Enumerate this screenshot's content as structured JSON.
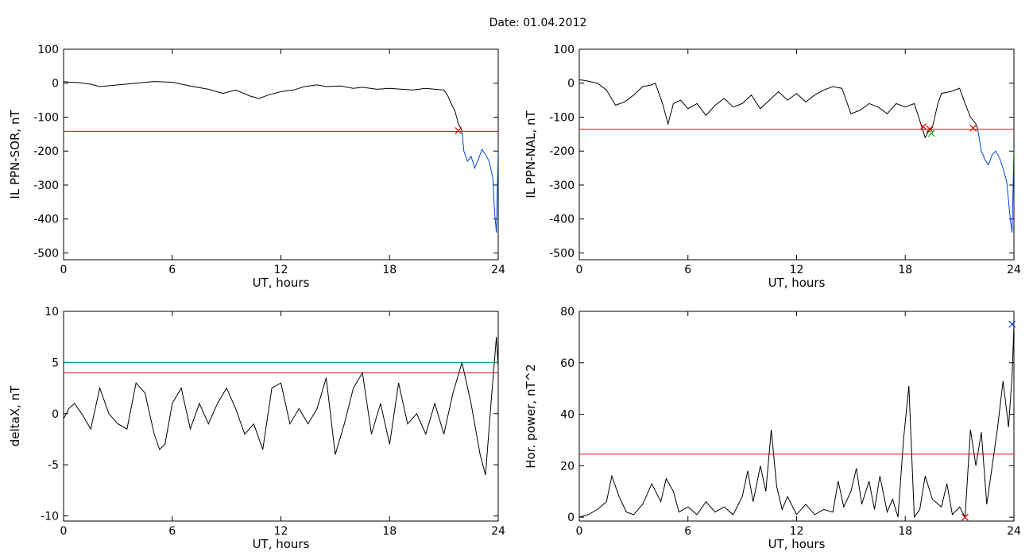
{
  "figure_title": "Date:  01.04.2012",
  "chart_data": [
    {
      "type": "line",
      "xlabel": "UT, hours",
      "ylabel": "IL PPN-SOR, nT",
      "xlim": [
        0,
        24
      ],
      "ylim": [
        -520,
        100
      ],
      "xticks": [
        0,
        6,
        12,
        18,
        24
      ],
      "yticks": [
        100,
        0,
        -100,
        -200,
        -300,
        -400,
        -500
      ],
      "series": [
        {
          "color": "#000000",
          "x": [
            0,
            0.3,
            0.8,
            1.5,
            2,
            3,
            4,
            5,
            6,
            7,
            8,
            8.8,
            9.5,
            10.3,
            10.8,
            11.3,
            12,
            12.7,
            13.3,
            14,
            14.5,
            15.3,
            16,
            16.5,
            17.3,
            18,
            18.7,
            19.3,
            20,
            20.5,
            21,
            21.2
          ],
          "y": [
            5,
            3,
            2,
            -3,
            -10,
            -5,
            0,
            5,
            3,
            -8,
            -18,
            -30,
            -20,
            -38,
            -45,
            -35,
            -25,
            -20,
            -10,
            -5,
            -10,
            -8,
            -15,
            -12,
            -18,
            -15,
            -18,
            -20,
            -15,
            -18,
            -20,
            -35
          ]
        },
        {
          "color": "#000000",
          "x": [
            21.2,
            21.4,
            21.6,
            21.8,
            22.0
          ],
          "y": [
            -35,
            -60,
            -80,
            -120,
            -140
          ]
        },
        {
          "color": "#0044cc",
          "x": [
            22.0,
            22.1,
            22.3,
            22.5,
            22.7,
            22.9,
            23.1,
            23.3,
            23.5,
            23.7,
            23.8,
            23.9,
            24.0
          ],
          "y": [
            -140,
            -200,
            -230,
            -215,
            -250,
            -225,
            -195,
            -210,
            -230,
            -280,
            -380,
            -440,
            -200
          ]
        },
        {
          "color": "#dd0000",
          "x": [
            0,
            24
          ],
          "y": [
            -142,
            -142
          ]
        }
      ],
      "markers": [
        {
          "x": 21.8,
          "y": -140,
          "symbol": "x",
          "color": "#dd0000"
        }
      ]
    },
    {
      "type": "line",
      "xlabel": "UT, hours",
      "ylabel": "IL PPN-NAL, nT",
      "xlim": [
        0,
        24
      ],
      "ylim": [
        -520,
        100
      ],
      "xticks": [
        0,
        6,
        12,
        18,
        24
      ],
      "yticks": [
        100,
        0,
        -100,
        -200,
        -300,
        -400,
        -500
      ],
      "series": [
        {
          "color": "#000000",
          "x": [
            0,
            0.3,
            1,
            1.5,
            2,
            2.5,
            3,
            3.5,
            4,
            4.2,
            4.6,
            4.9,
            5.2,
            5.6,
            6,
            6.5,
            7,
            7.5,
            8,
            8.5,
            9,
            9.5,
            10,
            10.5,
            11,
            11.5,
            12,
            12.5,
            13,
            13.5,
            14,
            14.5,
            15,
            15.5,
            16,
            16.5,
            17,
            17.5,
            18,
            18.5,
            18.8,
            19.1,
            19.3,
            19.5,
            19.8,
            20,
            20.5,
            21,
            21.3
          ],
          "y": [
            10,
            8,
            0,
            -20,
            -65,
            -55,
            -35,
            -10,
            -5,
            0,
            -60,
            -120,
            -60,
            -50,
            -75,
            -60,
            -95,
            -65,
            -45,
            -70,
            -60,
            -35,
            -75,
            -50,
            -25,
            -50,
            -30,
            -55,
            -35,
            -20,
            -10,
            -15,
            -90,
            -80,
            -60,
            -70,
            -90,
            -60,
            -70,
            -60,
            -110,
            -160,
            -140,
            -130,
            -60,
            -30,
            -25,
            -15,
            -60
          ]
        },
        {
          "color": "#000000",
          "x": [
            21.3,
            21.6,
            21.9,
            22.0
          ],
          "y": [
            -60,
            -100,
            -120,
            -135
          ]
        },
        {
          "color": "#0044cc",
          "x": [
            22.0,
            22.2,
            22.4,
            22.6,
            22.8,
            23.0,
            23.2,
            23.4,
            23.6,
            23.8,
            23.9,
            24.0
          ],
          "y": [
            -135,
            -200,
            -225,
            -240,
            -210,
            -200,
            -220,
            -250,
            -290,
            -400,
            -440,
            -190
          ]
        },
        {
          "color": "#dd0000",
          "x": [
            0,
            24
          ],
          "y": [
            -136,
            -136
          ]
        }
      ],
      "markers": [
        {
          "x": 19.0,
          "y": -128,
          "symbol": "x",
          "color": "#dd0000"
        },
        {
          "x": 19.35,
          "y": -135,
          "symbol": "x",
          "color": "#dd0000"
        },
        {
          "x": 19.45,
          "y": -148,
          "symbol": "x",
          "color": "#00aa00"
        },
        {
          "x": 21.75,
          "y": -132,
          "symbol": "x",
          "color": "#dd0000"
        }
      ]
    },
    {
      "type": "line",
      "xlabel": "UT, hours",
      "ylabel": "deltaX, nT",
      "xlim": [
        0,
        24
      ],
      "ylim": [
        -10.5,
        10
      ],
      "xticks": [
        0,
        6,
        12,
        18,
        24
      ],
      "yticks": [
        10,
        5,
        0,
        -5,
        -10
      ],
      "series": [
        {
          "color": "#000000",
          "x": [
            0,
            0.3,
            0.6,
            1,
            1.5,
            2,
            2.5,
            3,
            3.5,
            4,
            4.5,
            5,
            5.3,
            5.6,
            6,
            6.5,
            7,
            7.5,
            8,
            8.5,
            9,
            9.5,
            10,
            10.5,
            11,
            11.5,
            12,
            12.5,
            13,
            13.5,
            14,
            14.5,
            15,
            15.5,
            16,
            16.5,
            17,
            17.5,
            18,
            18.5,
            19,
            19.5,
            20,
            20.5,
            21,
            21.5,
            22,
            22.5,
            23,
            23.3,
            23.6,
            23.9,
            24
          ],
          "y": [
            -0.5,
            0.5,
            1,
            0,
            -1.5,
            2.5,
            0,
            -1,
            -1.5,
            3,
            2,
            -2,
            -3.5,
            -3,
            1,
            2.5,
            -1.5,
            1,
            -1,
            1,
            2.5,
            0.5,
            -2,
            -1,
            -3.5,
            2.5,
            3,
            -1,
            0.5,
            -1,
            0.5,
            3.5,
            -4,
            -1,
            2.5,
            4,
            -2,
            1,
            -3,
            3,
            -1,
            0,
            -2,
            1,
            -2,
            2,
            5,
            1,
            -4,
            -6,
            1,
            7.5,
            4.5
          ]
        },
        {
          "color": "#008888",
          "x": [
            0,
            24
          ],
          "y": [
            5,
            5
          ]
        },
        {
          "color": "#dd0000",
          "x": [
            0,
            24
          ],
          "y": [
            4,
            4
          ]
        }
      ],
      "markers": []
    },
    {
      "type": "line",
      "xlabel": "UT, hours",
      "ylabel": "Hor. power, nT^2",
      "xlim": [
        0,
        24
      ],
      "ylim": [
        -1.5,
        80
      ],
      "xticks": [
        0,
        6,
        12,
        18,
        24
      ],
      "yticks": [
        80,
        60,
        40,
        20,
        0
      ],
      "series": [
        {
          "color": "#000000",
          "x": [
            0,
            0.5,
            1,
            1.5,
            1.8,
            2.2,
            2.6,
            3,
            3.5,
            4,
            4.5,
            4.8,
            5.2,
            5.5,
            6,
            6.5,
            7,
            7.5,
            8,
            8.5,
            9,
            9.3,
            9.6,
            10,
            10.3,
            10.6,
            10.9,
            11.2,
            11.5,
            12,
            12.5,
            13,
            13.5,
            14,
            14.3,
            14.6,
            15,
            15.3,
            15.6,
            16,
            16.3,
            16.6,
            17,
            17.3,
            17.6,
            17.9,
            18.2,
            18.5,
            18.8,
            19.1,
            19.5,
            20,
            20.3,
            20.6,
            21,
            21.3,
            21.6,
            21.9,
            22.2,
            22.5,
            22.8,
            23.1,
            23.4,
            23.7,
            23.9,
            24
          ],
          "y": [
            0,
            1,
            3,
            6,
            16,
            8,
            2,
            1,
            5,
            13,
            6,
            15,
            10,
            2,
            4,
            1,
            6,
            2,
            4,
            1,
            8,
            18,
            6,
            20,
            10,
            34,
            12,
            3,
            8,
            1,
            5,
            1,
            3,
            2,
            14,
            4,
            10,
            19,
            5,
            14,
            3,
            16,
            2,
            7,
            0,
            30,
            51,
            0,
            3,
            16,
            7,
            4,
            13,
            1,
            4,
            0,
            34,
            20,
            33,
            5,
            20,
            35,
            53,
            35,
            55,
            75
          ]
        },
        {
          "color": "#dd0000",
          "x": [
            0,
            24
          ],
          "y": [
            24.5,
            24.5
          ]
        }
      ],
      "markers": [
        {
          "x": 21.3,
          "y": 0,
          "symbol": "x",
          "color": "#dd0000"
        },
        {
          "x": 23.9,
          "y": 75,
          "symbol": "x",
          "color": "#0044cc"
        }
      ]
    }
  ]
}
